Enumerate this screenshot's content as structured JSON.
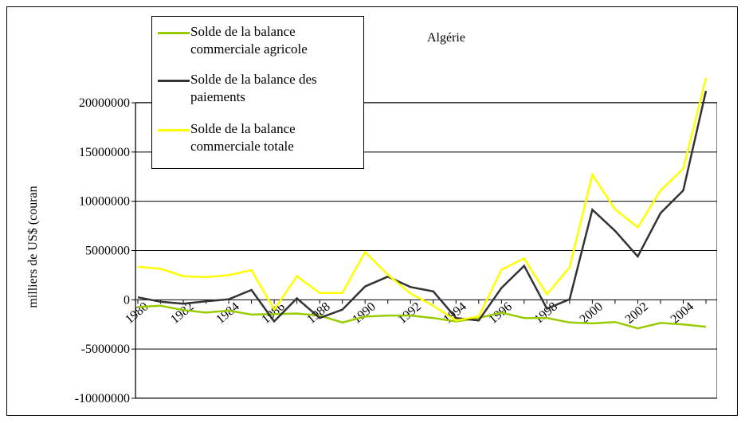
{
  "chart_data": {
    "type": "line",
    "title": "Algérie",
    "y_label": "milliers de US$ (couran",
    "categories": [
      "1980",
      null,
      "1982",
      null,
      "1984",
      null,
      "1986",
      null,
      "1988",
      null,
      "1990",
      null,
      "1992",
      null,
      "1994",
      null,
      "1996",
      null,
      "1998",
      null,
      "2000",
      null,
      "2002",
      null,
      "2004",
      null
    ],
    "series": [
      {
        "name": "Solde de la balance commerciale agricole",
        "color": "#99cc00",
        "values": [
          -730000,
          -600000,
          -1050000,
          -1300000,
          -1100000,
          -1500000,
          -1450000,
          -1400000,
          -1600000,
          -2300000,
          -1700000,
          -1600000,
          -1600000,
          -1850000,
          -2200000,
          -1850000,
          -1300000,
          -1850000,
          -1850000,
          -2300000,
          -2400000,
          -2250000,
          -2900000,
          -2350000,
          -2500000,
          -2750000
        ]
      },
      {
        "name": "Solde de la balance des paiements",
        "color": "#333333",
        "values": [
          250000,
          -200000,
          -400000,
          -150000,
          50000,
          1000000,
          -2200000,
          150000,
          -1850000,
          -1000000,
          1350000,
          2350000,
          1300000,
          850000,
          -1850000,
          -2100000,
          1200000,
          3450000,
          -900000,
          50000,
          9150000,
          7000000,
          4400000,
          8800000,
          11100000,
          21200000
        ]
      },
      {
        "name": "Solde de la balance commerciale totale",
        "color": "#ffff00",
        "values": [
          3350000,
          3150000,
          2400000,
          2300000,
          2500000,
          3000000,
          -1000000,
          2400000,
          700000,
          700000,
          4850000,
          2550000,
          650000,
          -600000,
          -2100000,
          -1700000,
          3050000,
          4200000,
          550000,
          3300000,
          12700000,
          9200000,
          7350000,
          11100000,
          13300000,
          22500000
        ]
      }
    ],
    "ylim": [
      -10000000,
      20000000
    ],
    "yticks": [
      -10000000,
      -5000000,
      0,
      5000000,
      10000000,
      15000000,
      20000000
    ],
    "grid": true,
    "legend": "top-left"
  }
}
